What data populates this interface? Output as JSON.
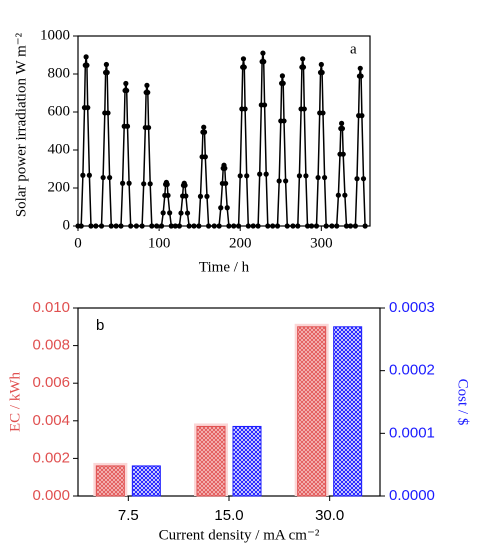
{
  "chart_data": [
    {
      "type": "line",
      "ylabel": "Solar power irradiation W m⁻²",
      "xlabel": "Time / h",
      "annotation": "a",
      "color": "#000000",
      "xlim": [
        0,
        360
      ],
      "xticks": [
        0,
        100,
        200,
        300
      ],
      "ylim": [
        0,
        1000
      ],
      "yticks": [
        0,
        200,
        400,
        600,
        800,
        1000
      ],
      "x": [
        0,
        4,
        6,
        8,
        9,
        10,
        11,
        12,
        14,
        16,
        22,
        29,
        31,
        33,
        34,
        35,
        36,
        37,
        39,
        41,
        47,
        53,
        55,
        57,
        58,
        59,
        60,
        61,
        63,
        65,
        72,
        79,
        81,
        83,
        84,
        85,
        86,
        87,
        89,
        91,
        97,
        103,
        105,
        107,
        108,
        109,
        110,
        111,
        113,
        115,
        120,
        125,
        127,
        129,
        130,
        131,
        132,
        133,
        135,
        137,
        143,
        149,
        151,
        153,
        154,
        155,
        156,
        157,
        159,
        161,
        168,
        174,
        176,
        178,
        179,
        180,
        181,
        182,
        184,
        186,
        192,
        198,
        200,
        202,
        203,
        204,
        205,
        206,
        208,
        210,
        216,
        222,
        224,
        226,
        227,
        228,
        229,
        230,
        232,
        234,
        240,
        246,
        248,
        250,
        251,
        252,
        253,
        254,
        256,
        258,
        265,
        271,
        273,
        275,
        276,
        277,
        278,
        279,
        281,
        283,
        288,
        294,
        296,
        298,
        299,
        300,
        301,
        302,
        304,
        306,
        313,
        319,
        321,
        323,
        324,
        325,
        326,
        327,
        329,
        331,
        336,
        342,
        344,
        346,
        347,
        348,
        349,
        350,
        352,
        354
      ],
      "values": [
        0,
        0,
        267,
        623,
        846,
        890,
        846,
        623,
        267,
        0,
        0,
        0,
        255,
        595,
        808,
        850,
        808,
        595,
        255,
        0,
        0,
        0,
        225,
        525,
        713,
        750,
        713,
        525,
        225,
        0,
        0,
        0,
        222,
        518,
        703,
        740,
        703,
        518,
        222,
        0,
        0,
        0,
        69,
        161,
        219,
        230,
        219,
        161,
        69,
        0,
        0,
        0,
        68,
        158,
        214,
        225,
        214,
        158,
        68,
        0,
        0,
        0,
        156,
        364,
        494,
        520,
        494,
        364,
        156,
        0,
        0,
        0,
        96,
        224,
        304,
        320,
        304,
        224,
        96,
        0,
        0,
        0,
        264,
        616,
        836,
        880,
        836,
        616,
        264,
        0,
        0,
        0,
        273,
        637,
        865,
        910,
        865,
        637,
        273,
        0,
        0,
        0,
        237,
        553,
        751,
        790,
        751,
        553,
        237,
        0,
        0,
        0,
        264,
        616,
        836,
        880,
        836,
        616,
        264,
        0,
        0,
        0,
        255,
        595,
        808,
        850,
        808,
        595,
        255,
        0,
        0,
        0,
        162,
        378,
        513,
        540,
        513,
        378,
        162,
        0,
        0,
        0,
        249,
        581,
        789,
        830,
        789,
        581,
        249,
        0
      ]
    },
    {
      "type": "bar",
      "ylabel": "EC / kWh",
      "y2label": "Cost / $",
      "xlabel": "Current density / mA cm⁻²",
      "annotation": "b",
      "categories": [
        "7.5",
        "15.0",
        "30.0"
      ],
      "series": [
        {
          "color": "#e05050",
          "values": [
            0.0016,
            0.0037,
            0.009
          ]
        },
        {
          "color": "#1a1aff",
          "axis": "y2",
          "values": [
            4.8e-05,
            0.000111,
            0.00027
          ]
        }
      ],
      "ylim": [
        0,
        0.01
      ],
      "yticks": [
        {
          "value": 0,
          "label": "0.000"
        },
        {
          "value": 0.002,
          "label": "0.002"
        },
        {
          "value": 0.004,
          "label": "0.004"
        },
        {
          "value": 0.006,
          "label": "0.006"
        },
        {
          "value": 0.008,
          "label": "0.008"
        },
        {
          "value": 0.01,
          "label": "0.010"
        }
      ],
      "y2lim": [
        0,
        0.0003
      ],
      "y2ticks": [
        {
          "value": 0,
          "label": "0.0000"
        },
        {
          "value": 0.0001,
          "label": "0.0001"
        },
        {
          "value": 0.0002,
          "label": "0.0002"
        },
        {
          "value": 0.0003,
          "label": "0.0003"
        }
      ]
    }
  ]
}
